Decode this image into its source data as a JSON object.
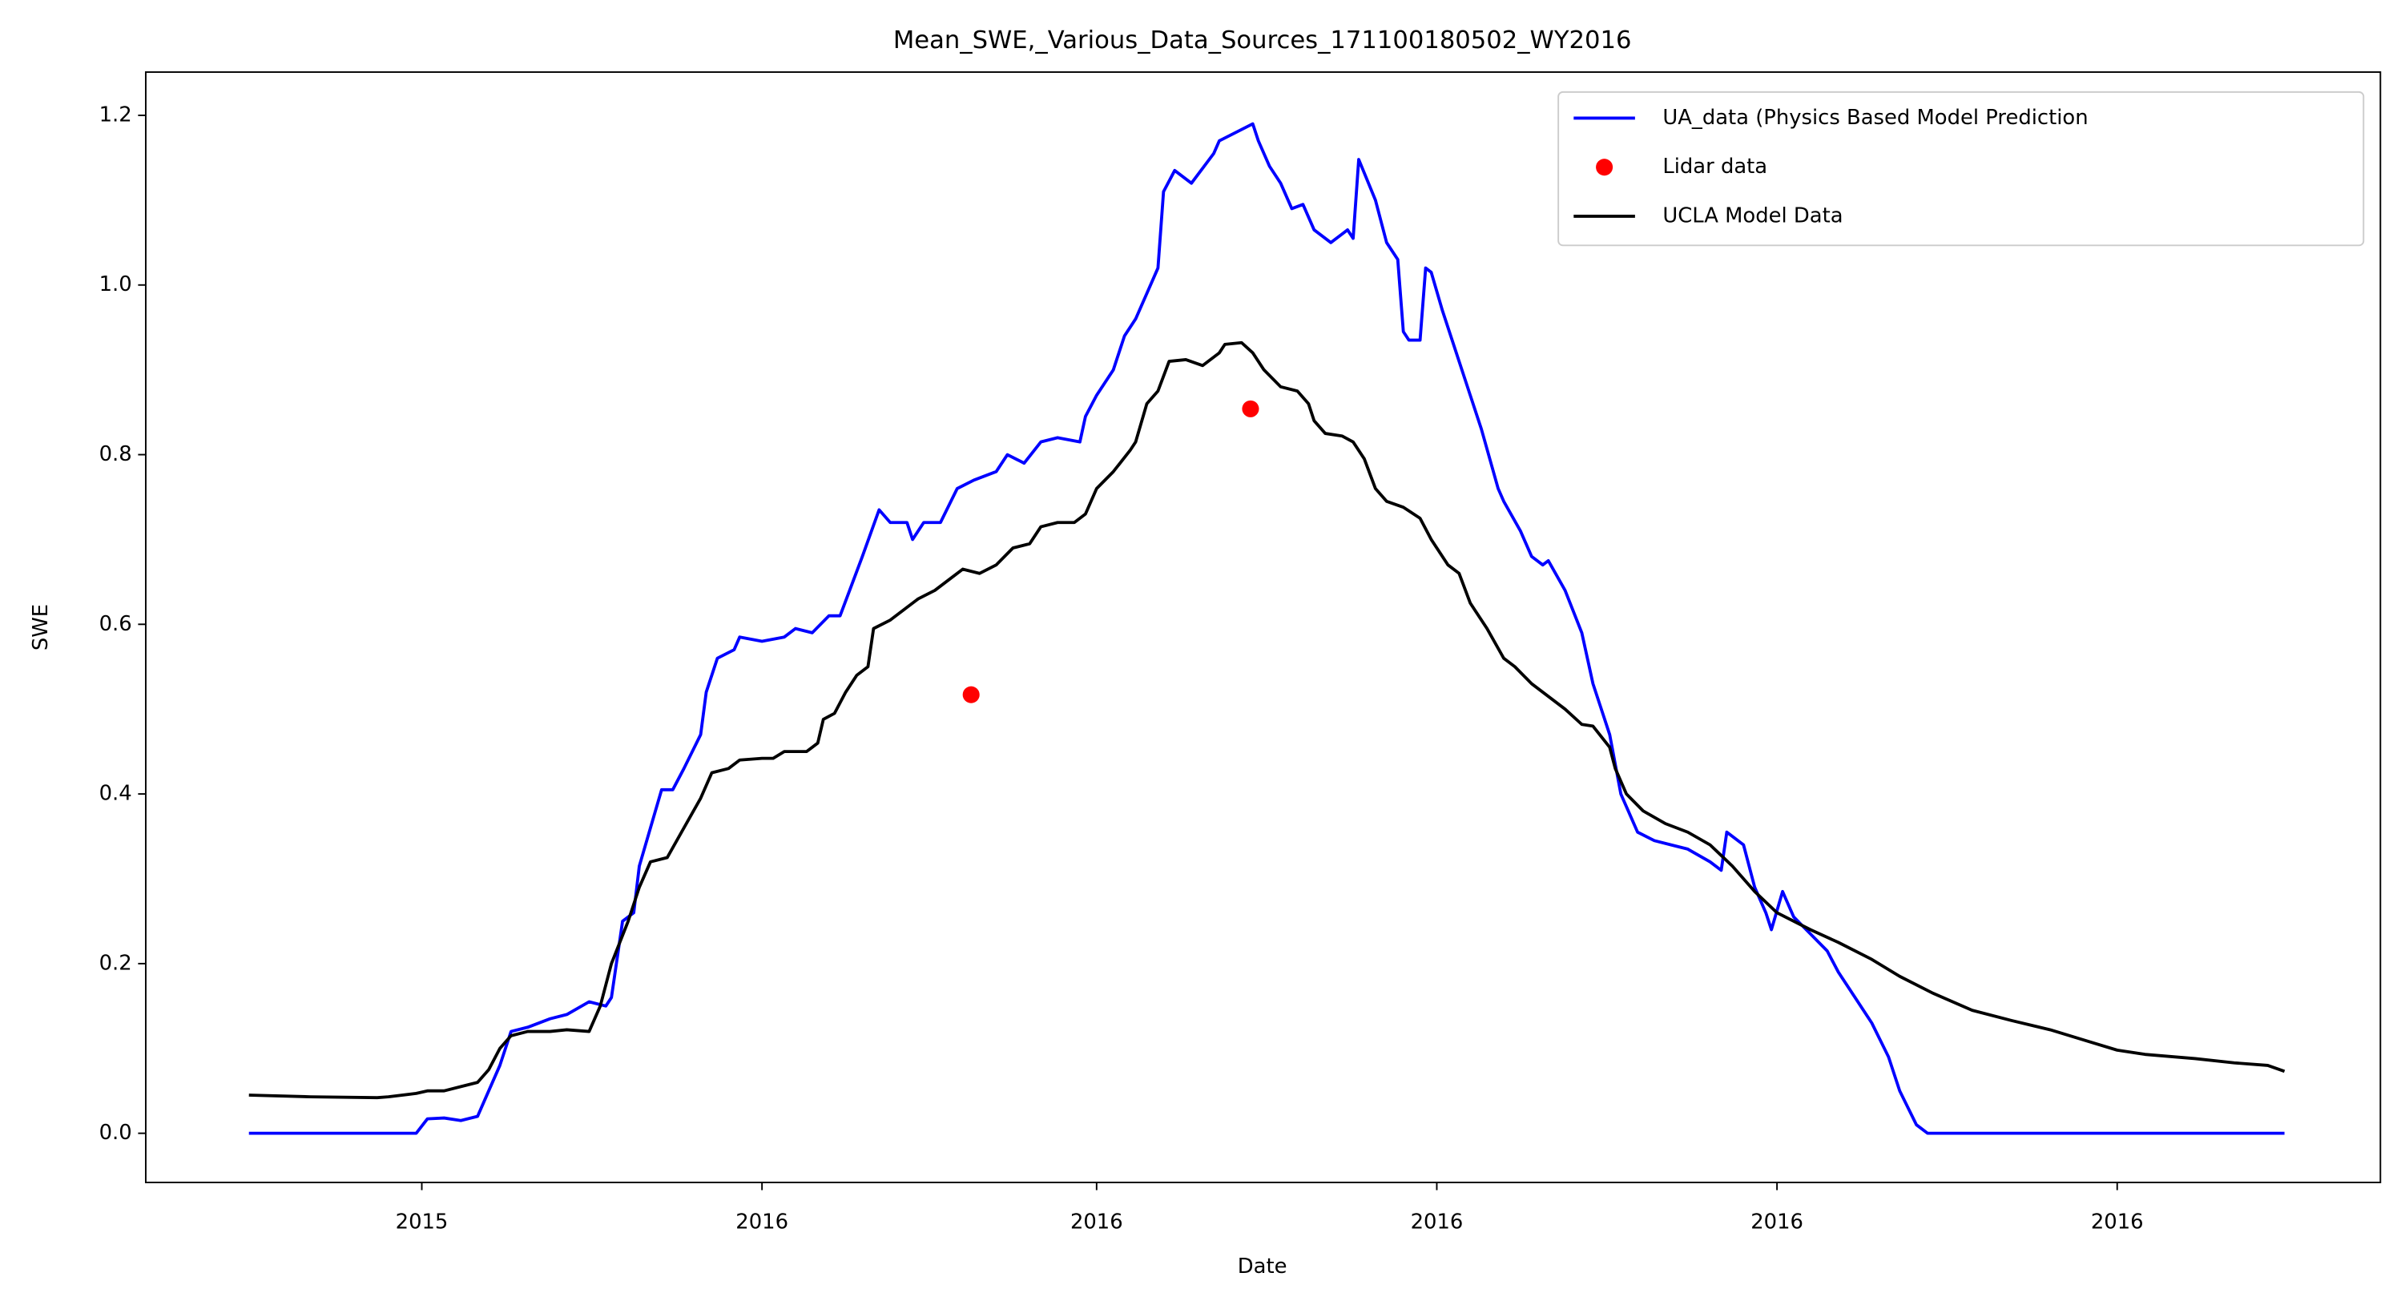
{
  "chart_data": {
    "type": "line",
    "title": "Mean_SWE,_Various_Data_Sources_171100180502_WY2016",
    "xlabel": "Date",
    "ylabel": "SWE",
    "xlim": [
      -18.5,
      382.2
    ],
    "ylim": [
      -0.058,
      1.251
    ],
    "xticks": [
      {
        "value": 31,
        "label": "2015"
      },
      {
        "value": 92,
        "label": "2016"
      },
      {
        "value": 152,
        "label": "2016"
      },
      {
        "value": 213,
        "label": "2016"
      },
      {
        "value": 274,
        "label": "2016"
      },
      {
        "value": 335,
        "label": "2016"
      }
    ],
    "yticks": [
      {
        "value": 0,
        "label": "0.0"
      },
      0.2,
      0.4,
      0.6,
      0.8,
      {
        "value": 1,
        "label": "1.0"
      },
      1.2
    ],
    "grid": false,
    "legend": "upper right",
    "series": [
      {
        "name": "UA_data (Physics Based Model Prediction",
        "color": "#0000ff",
        "style": "line",
        "x": [
          0,
          30,
          32,
          35,
          38,
          41,
          43,
          45,
          47,
          50,
          54,
          57,
          61,
          64,
          65,
          67,
          69,
          70,
          72,
          74,
          76,
          78,
          81,
          82,
          84,
          87,
          88,
          92,
          96,
          98,
          101,
          104,
          106,
          108,
          110,
          113,
          115,
          118,
          119,
          121,
          124,
          127,
          130,
          134,
          136,
          139,
          142,
          145,
          149,
          150,
          152,
          155,
          157,
          159,
          161,
          163,
          164,
          166,
          169,
          173,
          174,
          177,
          180,
          181,
          183,
          185,
          187,
          189,
          191,
          194,
          196,
          197,
          198,
          199,
          202,
          204,
          206,
          207,
          208,
          210,
          211,
          212,
          214,
          216,
          219,
          221,
          224,
          225,
          228,
          230,
          232,
          233,
          236,
          239,
          241,
          244,
          246,
          249,
          252,
          255,
          258,
          262,
          264,
          265,
          268,
          270,
          272,
          273,
          275,
          277,
          280,
          283,
          285,
          288,
          291,
          294,
          296,
          299,
          301,
          365
        ],
        "values": [
          0,
          0,
          0.017,
          0.018,
          0.015,
          0.02,
          0.05,
          0.08,
          0.12,
          0.125,
          0.135,
          0.14,
          0.155,
          0.15,
          0.16,
          0.25,
          0.26,
          0.315,
          0.36,
          0.405,
          0.405,
          0.43,
          0.47,
          0.52,
          0.56,
          0.57,
          0.585,
          0.58,
          0.585,
          0.595,
          0.59,
          0.61,
          0.61,
          0.645,
          0.68,
          0.735,
          0.72,
          0.72,
          0.7,
          0.72,
          0.72,
          0.76,
          0.77,
          0.78,
          0.8,
          0.79,
          0.815,
          0.82,
          0.815,
          0.845,
          0.87,
          0.9,
          0.94,
          0.96,
          0.99,
          1.02,
          1.11,
          1.135,
          1.12,
          1.155,
          1.17,
          1.18,
          1.19,
          1.17,
          1.14,
          1.12,
          1.09,
          1.095,
          1.065,
          1.05,
          1.06,
          1.065,
          1.055,
          1.148,
          1.1,
          1.05,
          1.03,
          0.945,
          0.935,
          0.935,
          1.02,
          1.015,
          0.97,
          0.93,
          0.87,
          0.83,
          0.76,
          0.745,
          0.71,
          0.68,
          0.67,
          0.675,
          0.64,
          0.59,
          0.53,
          0.47,
          0.4,
          0.355,
          0.345,
          0.34,
          0.335,
          0.32,
          0.31,
          0.355,
          0.34,
          0.29,
          0.26,
          0.24,
          0.285,
          0.255,
          0.235,
          0.215,
          0.19,
          0.16,
          0.13,
          0.09,
          0.05,
          0.01,
          0,
          0
        ]
      },
      {
        "name": "Lidar data",
        "color": "#ff0000",
        "style": "scatter",
        "x": [
          129.5,
          179.6
        ],
        "values": [
          0.517,
          0.854
        ]
      },
      {
        "name": "UCLA Model Data",
        "color": "#000000",
        "style": "line",
        "x": [
          0,
          11,
          23,
          25,
          30,
          32,
          35,
          38,
          41,
          43,
          45,
          47,
          50,
          54,
          57,
          61,
          63,
          65,
          68,
          70,
          72,
          75,
          78,
          81,
          83,
          86,
          88,
          92,
          94,
          96,
          100,
          102,
          103,
          105,
          107,
          109,
          111,
          112,
          115,
          118,
          120,
          123,
          126,
          128,
          131,
          134,
          137,
          140,
          142,
          145,
          148,
          150,
          152,
          155,
          158,
          159,
          161,
          163,
          165,
          168,
          171,
          174,
          175,
          178,
          180,
          182,
          185,
          188,
          190,
          191,
          193,
          196,
          198,
          200,
          202,
          204,
          207,
          210,
          212,
          215,
          217,
          219,
          222,
          225,
          227,
          230,
          233,
          236,
          239,
          241,
          244,
          245,
          247,
          250,
          254,
          258,
          262,
          266,
          270,
          274,
          280,
          285,
          291,
          296,
          302,
          309,
          316,
          323,
          330,
          335,
          340,
          349,
          356,
          362,
          365
        ],
        "values": [
          0.045,
          0.043,
          0.042,
          0.043,
          0.047,
          0.05,
          0.05,
          0.055,
          0.06,
          0.075,
          0.1,
          0.115,
          0.12,
          0.12,
          0.122,
          0.12,
          0.15,
          0.2,
          0.25,
          0.29,
          0.32,
          0.325,
          0.36,
          0.395,
          0.425,
          0.43,
          0.44,
          0.442,
          0.442,
          0.45,
          0.45,
          0.46,
          0.488,
          0.495,
          0.52,
          0.54,
          0.55,
          0.595,
          0.605,
          0.62,
          0.63,
          0.64,
          0.655,
          0.665,
          0.66,
          0.67,
          0.69,
          0.695,
          0.715,
          0.72,
          0.72,
          0.73,
          0.76,
          0.78,
          0.805,
          0.815,
          0.86,
          0.875,
          0.91,
          0.912,
          0.905,
          0.92,
          0.93,
          0.932,
          0.92,
          0.9,
          0.88,
          0.875,
          0.86,
          0.84,
          0.825,
          0.822,
          0.815,
          0.795,
          0.76,
          0.745,
          0.738,
          0.725,
          0.7,
          0.67,
          0.66,
          0.625,
          0.595,
          0.56,
          0.55,
          0.53,
          0.515,
          0.5,
          0.482,
          0.48,
          0.455,
          0.43,
          0.4,
          0.38,
          0.365,
          0.355,
          0.34,
          0.315,
          0.285,
          0.26,
          0.24,
          0.225,
          0.205,
          0.185,
          0.165,
          0.145,
          0.133,
          0.122,
          0.108,
          0.098,
          0.093,
          0.088,
          0.083,
          0.08,
          0.073
        ]
      }
    ]
  }
}
